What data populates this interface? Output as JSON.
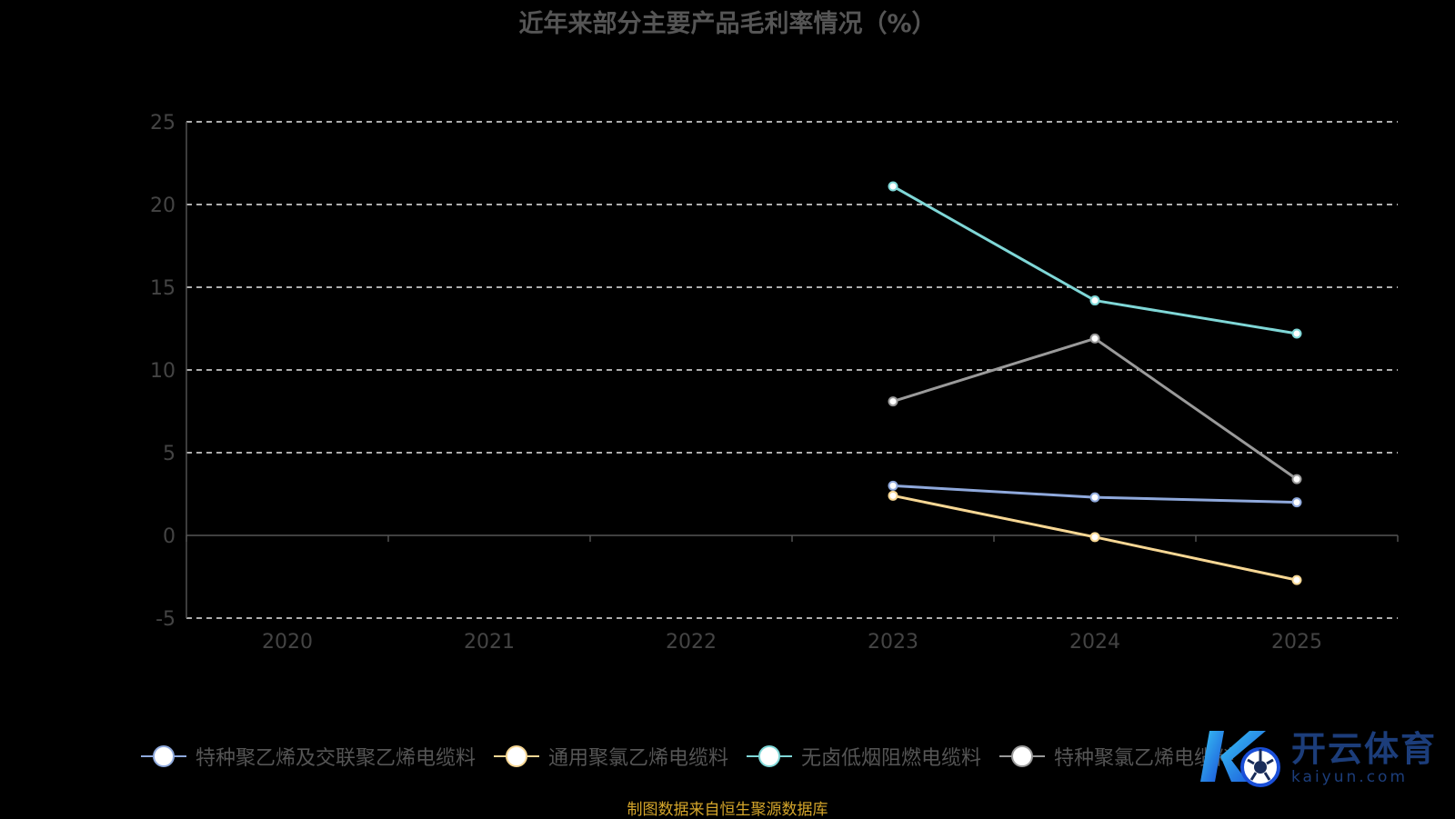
{
  "chart_data": {
    "type": "line",
    "title": "近年来部分主要产品毛利率情况（%）",
    "categories": [
      "2020",
      "2021",
      "2022",
      "2023",
      "2024",
      "2025"
    ],
    "ylim": [
      -5,
      25
    ],
    "yticks": [
      25,
      20,
      15,
      10,
      5,
      0,
      -5
    ],
    "grid": true,
    "grid_style": "dashed",
    "legend_position": "bottom",
    "series": [
      {
        "name": "特种聚乙烯及交联聚乙烯电缆料",
        "color": "#8fa9dc",
        "values": [
          null,
          null,
          null,
          3.0,
          2.3,
          2.0
        ]
      },
      {
        "name": "通用聚氯乙烯电缆料",
        "color": "#f7d794",
        "values": [
          null,
          null,
          null,
          2.4,
          -0.1,
          -2.7
        ]
      },
      {
        "name": "无卤低烟阻燃电缆料",
        "color": "#7fd7d7",
        "values": [
          null,
          null,
          null,
          21.1,
          14.2,
          12.2
        ]
      },
      {
        "name": "特种聚氯乙烯电缆料",
        "color": "#9a9a9a",
        "values": [
          null,
          null,
          null,
          8.1,
          11.9,
          3.4
        ]
      }
    ]
  },
  "source_note": "制图数据来自恒生聚源数据库",
  "watermark": {
    "brand": "开云体育",
    "url": "kaiyun.com"
  }
}
